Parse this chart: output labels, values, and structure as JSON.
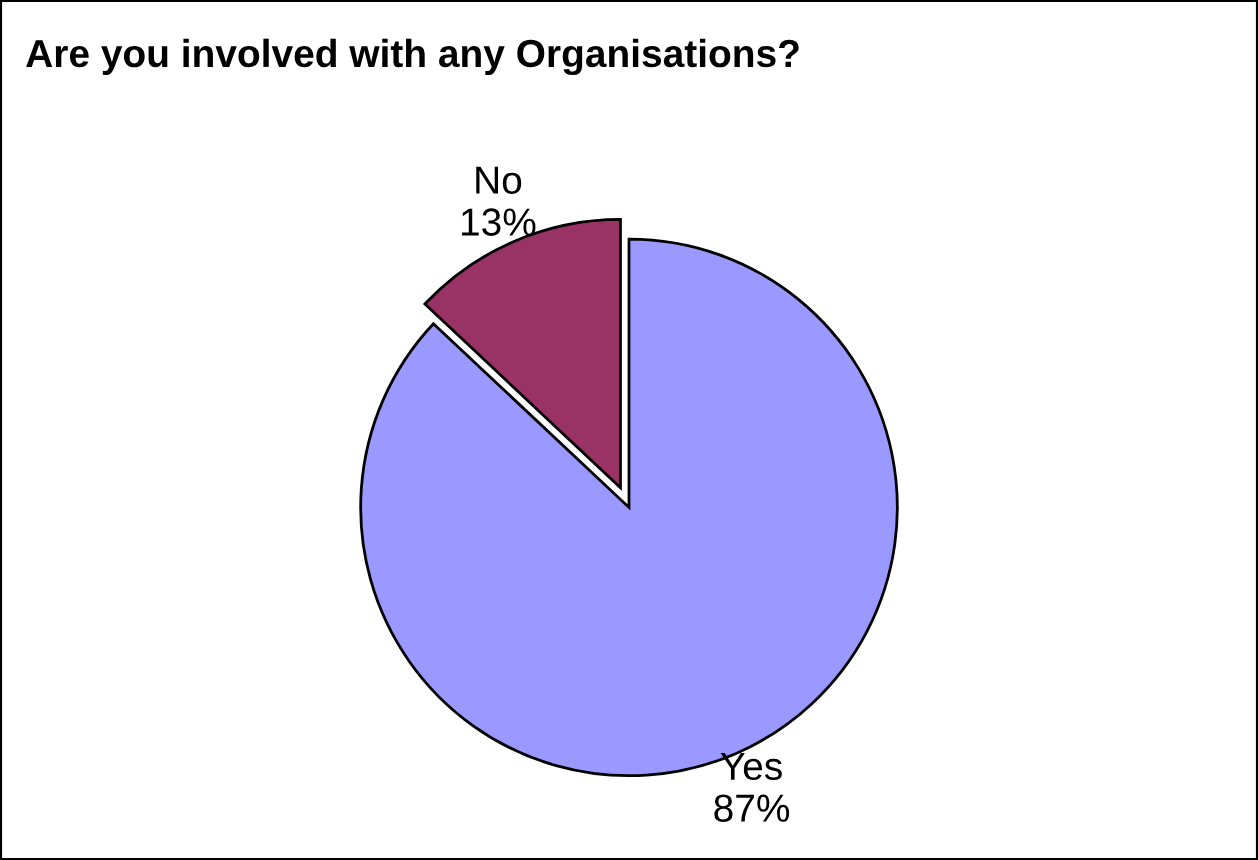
{
  "chart_data": {
    "type": "pie",
    "title": "Are you involved with any Organisations?",
    "categories": [
      "Yes",
      "No"
    ],
    "values": [
      87,
      13
    ],
    "value_labels": [
      "87%",
      "13%"
    ],
    "colors": [
      "#9999ff",
      "#993366"
    ],
    "legend": false
  }
}
